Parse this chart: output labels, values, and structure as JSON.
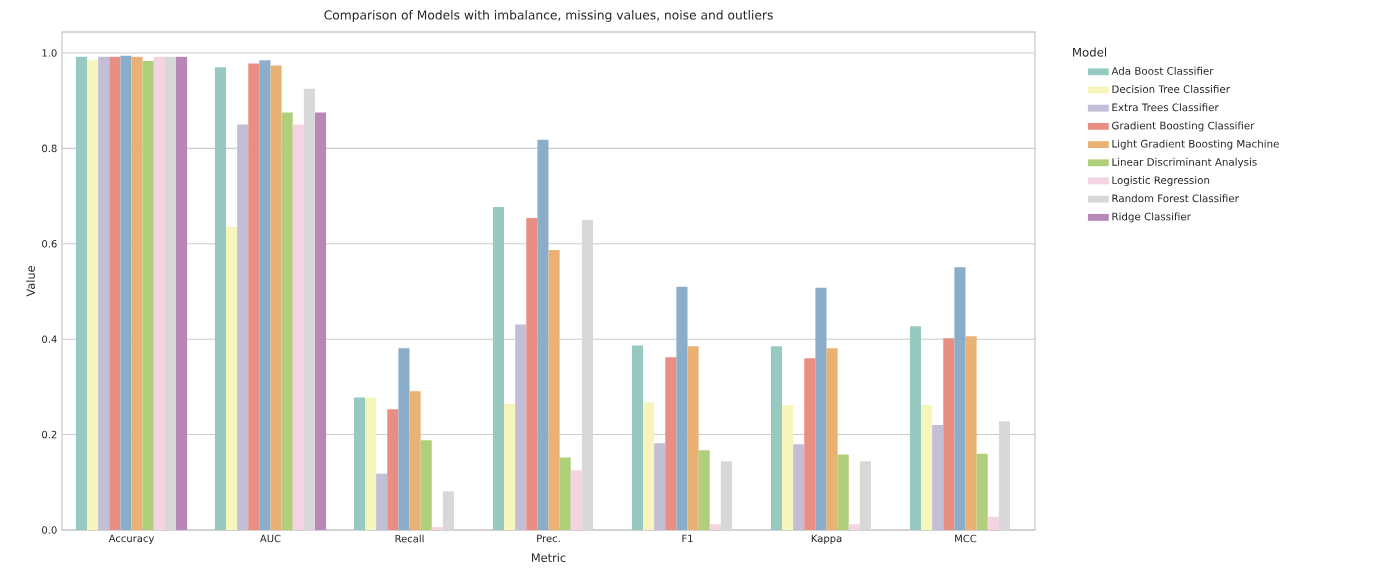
{
  "chart_data": {
    "type": "bar",
    "title": "Comparison of Models with imbalance, missing values, noise and outliers",
    "xlabel": "Metric",
    "ylabel": "Value",
    "legend_title": "Model",
    "categories": [
      "Accuracy",
      "AUC",
      "Recall",
      "Prec.",
      "F1",
      "Kappa",
      "MCC"
    ],
    "ylim": [
      0,
      1.044
    ],
    "yticks": [
      {
        "value": 0,
        "label": "0.0"
      },
      0.2,
      0.4,
      0.6,
      0.8,
      {
        "value": 1,
        "label": "1.0"
      }
    ],
    "grid": "y",
    "legend": "right",
    "series": [
      {
        "name": "Ada Boost Classifier",
        "color": "#97c9c1",
        "values": [
          0.992,
          0.97,
          0.278,
          0.677,
          0.387,
          0.385,
          0.427
        ]
      },
      {
        "name": "Decision Tree Classifier",
        "color": "#f6f5bc",
        "values": [
          0.985,
          0.635,
          0.278,
          0.264,
          0.268,
          0.262,
          0.262
        ]
      },
      {
        "name": "Extra Trees Classifier",
        "color": "#c2bed6",
        "values": [
          0.992,
          0.85,
          0.118,
          0.431,
          0.182,
          0.18,
          0.22
        ]
      },
      {
        "name": "Gradient Boosting Classifier",
        "color": "#e98e82",
        "values": [
          0.992,
          0.978,
          0.253,
          0.654,
          0.362,
          0.36,
          0.402
        ]
      },
      {
        "color": "#8aaec9",
        "values": [
          0.994,
          0.985,
          0.381,
          0.818,
          0.51,
          0.508,
          0.551
        ]
      },
      {
        "name": "Light Gradient Boosting Machine",
        "color": "#e9b174",
        "values": [
          0.992,
          0.974,
          0.291,
          0.587,
          0.385,
          0.381,
          0.406
        ]
      },
      {
        "name": "Linear Discriminant Analysis",
        "color": "#b0cf7a",
        "values": [
          0.983,
          0.875,
          0.188,
          0.152,
          0.167,
          0.158,
          0.16
        ]
      },
      {
        "name": "Logistic Regression",
        "color": "#f4d3e3",
        "values": [
          0.992,
          0.85,
          0.006,
          0.125,
          0.012,
          0.012,
          0.028
        ]
      },
      {
        "name": "Random Forest Classifier",
        "color": "#d8d8d8",
        "values": [
          0.992,
          0.925,
          0.081,
          0.65,
          0.144,
          0.144,
          0.228
        ]
      },
      {
        "name": "Ridge Classifier",
        "color": "#b687b7",
        "values": [
          0.992,
          0.875,
          0,
          0,
          0,
          0,
          0
        ]
      }
    ]
  }
}
